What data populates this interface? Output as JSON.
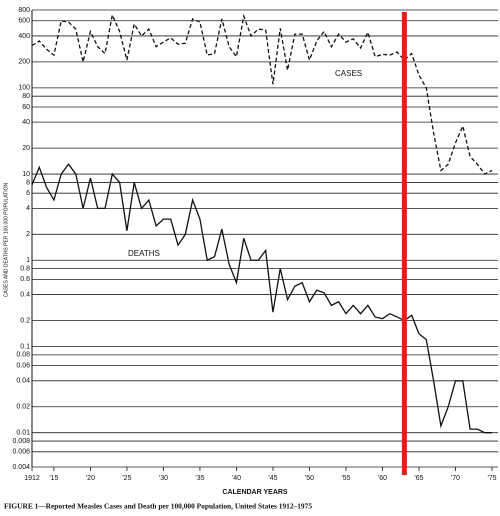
{
  "chart_data": {
    "type": "line",
    "title": "FIGURE 1—Reported Measles Cases and Death per 100,000 Population, United States 1912–1975",
    "x_label": "CALENDAR YEARS",
    "y_label": "CASES AND DEATHS PER 100,000 POPULATION",
    "log_y": true,
    "grid": true,
    "x": [
      1912,
      1913,
      1914,
      1915,
      1916,
      1917,
      1918,
      1919,
      1920,
      1921,
      1922,
      1923,
      1924,
      1925,
      1926,
      1927,
      1928,
      1929,
      1930,
      1931,
      1932,
      1933,
      1934,
      1935,
      1936,
      1937,
      1938,
      1939,
      1940,
      1941,
      1942,
      1943,
      1944,
      1945,
      1946,
      1947,
      1948,
      1949,
      1950,
      1951,
      1952,
      1953,
      1954,
      1955,
      1956,
      1957,
      1958,
      1959,
      1960,
      1961,
      1962,
      1963,
      1964,
      1965,
      1966,
      1967,
      1968,
      1969,
      1970,
      1971,
      1972,
      1973,
      1974,
      1975
    ],
    "series": [
      {
        "name": "CASES",
        "color": "#111111",
        "dash": true,
        "values": [
          310,
          350,
          280,
          240,
          600,
          580,
          480,
          200,
          450,
          300,
          250,
          700,
          450,
          210,
          550,
          400,
          480,
          300,
          340,
          380,
          320,
          330,
          630,
          580,
          240,
          250,
          630,
          300,
          230,
          680,
          400,
          480,
          470,
          110,
          490,
          160,
          420,
          420,
          210,
          350,
          450,
          300,
          420,
          340,
          370,
          290,
          440,
          230,
          245,
          240,
          260,
          210,
          250,
          140,
          100,
          30,
          11,
          13,
          23,
          36,
          16,
          13,
          10,
          11
        ]
      },
      {
        "name": "DEATHS",
        "color": "#111111",
        "dash": false,
        "values": [
          7.5,
          12,
          7,
          5,
          10,
          13,
          10,
          4,
          9,
          4,
          4,
          10,
          8,
          2.2,
          8,
          4,
          5,
          2.5,
          3,
          3,
          1.5,
          2,
          5,
          3,
          1,
          1.1,
          2.3,
          0.9,
          0.55,
          1.8,
          1,
          1,
          1.3,
          0.25,
          0.8,
          0.35,
          0.5,
          0.55,
          0.33,
          0.45,
          0.42,
          0.3,
          0.33,
          0.24,
          0.3,
          0.24,
          0.3,
          0.22,
          0.21,
          0.24,
          0.22,
          0.2,
          0.23,
          0.14,
          0.12,
          0.04,
          0.012,
          0.02,
          0.04,
          0.04,
          0.011,
          0.011,
          0.01,
          0.01
        ]
      }
    ],
    "xlim": [
      1912,
      1975
    ],
    "xticks": [
      1912,
      {
        "value": 1915,
        "label": "'15"
      },
      {
        "value": 1920,
        "label": "'20"
      },
      {
        "value": 1925,
        "label": "'25"
      },
      {
        "value": 1930,
        "label": "'30"
      },
      {
        "value": 1935,
        "label": "'35"
      },
      {
        "value": 1940,
        "label": "'40"
      },
      {
        "value": 1945,
        "label": "'45"
      },
      {
        "value": 1950,
        "label": "'50"
      },
      {
        "value": 1955,
        "label": "'55"
      },
      {
        "value": 1960,
        "label": "'60"
      },
      {
        "value": 1965,
        "label": "'65"
      },
      {
        "value": 1970,
        "label": "'70"
      },
      {
        "value": 1975,
        "label": "'75"
      }
    ],
    "ylim": [
      0.004,
      800
    ],
    "yticks": [
      800,
      600,
      400,
      200,
      100,
      80,
      60,
      40,
      20,
      10,
      8,
      6,
      4,
      2,
      1,
      0.8,
      0.6,
      0.4,
      0.2,
      0.1,
      0.08,
      0.06,
      0.04,
      0.02,
      0.01,
      0.008,
      0.006,
      0.004
    ],
    "vline": {
      "x": 1963,
      "color": "#e0201c"
    }
  }
}
